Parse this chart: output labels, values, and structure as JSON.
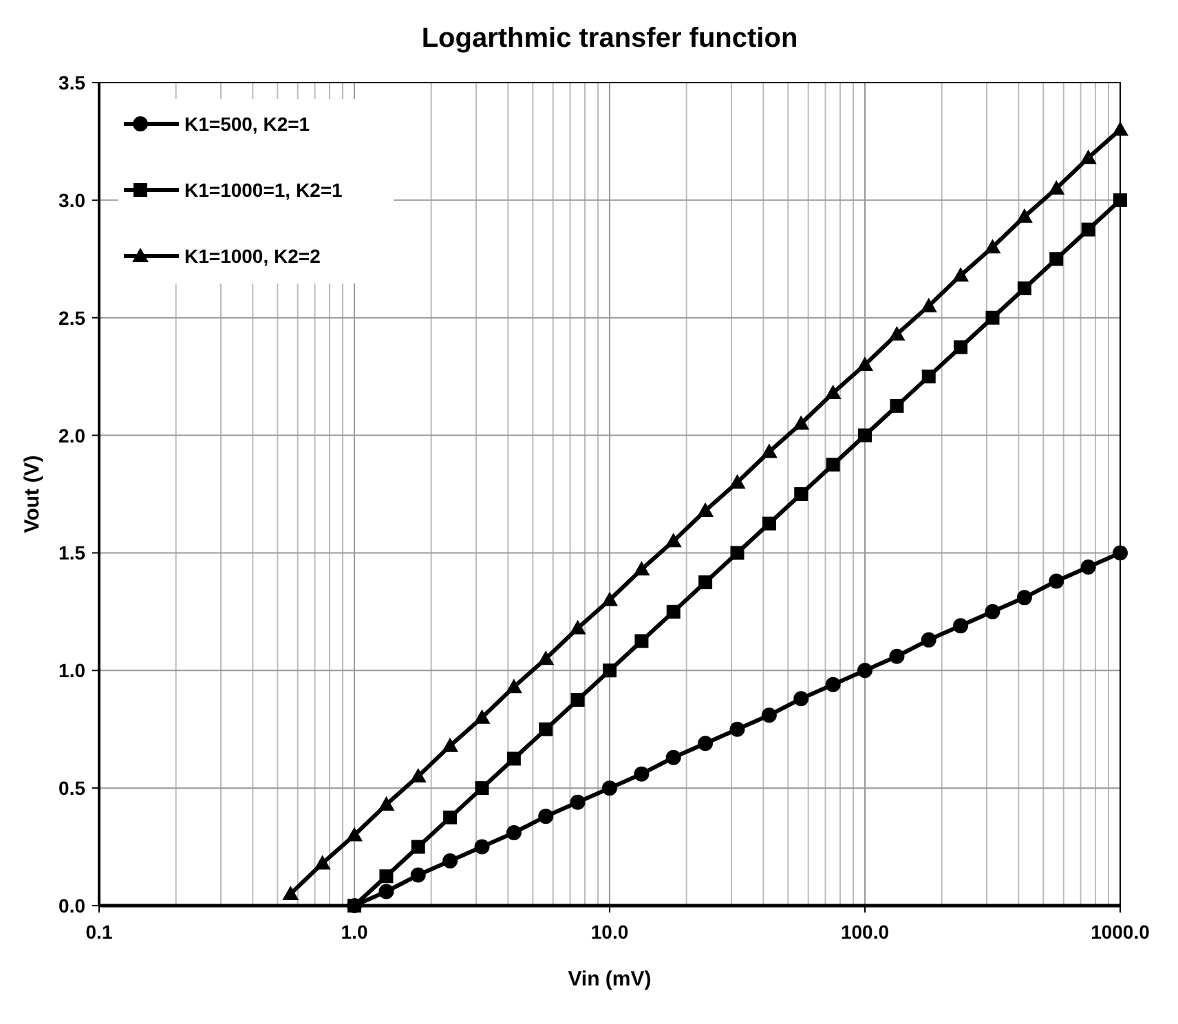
{
  "chart_data": {
    "type": "line",
    "title": "Logarthmic transfer function",
    "xlabel": "Vin (mV)",
    "ylabel": "Vout (V)",
    "log": "x",
    "grid": true,
    "legend": "top left",
    "xlim": [
      0.1,
      1000
    ],
    "xticks": [
      {
        "value": 0.1,
        "label": "0.1"
      },
      {
        "value": 1,
        "label": "1.0"
      },
      {
        "value": 10,
        "label": "10.0"
      },
      {
        "value": 100,
        "label": "100.0"
      },
      {
        "value": 1000,
        "label": "1000.0"
      }
    ],
    "ylim": [
      0,
      3.5
    ],
    "yticks": [
      {
        "value": 0,
        "label": "0.0"
      },
      {
        "value": 0.5,
        "label": "0.5"
      },
      {
        "value": 1,
        "label": "1.0"
      },
      {
        "value": 1.5,
        "label": "1.5"
      },
      {
        "value": 2,
        "label": "2.0"
      },
      {
        "value": 2.5,
        "label": "2.5"
      },
      {
        "value": 3,
        "label": "3.0"
      },
      {
        "value": 3.5,
        "label": "3.5"
      }
    ],
    "series": [
      {
        "name": "K1=500, K2=1",
        "color": "#000000",
        "marker": "circle",
        "x": [
          1,
          1.334,
          1.778,
          2.371,
          3.162,
          4.217,
          5.623,
          7.499,
          10,
          13.34,
          17.78,
          23.71,
          31.62,
          42.17,
          56.23,
          74.99,
          100,
          133.4,
          177.8,
          237.1,
          316.2,
          421.7,
          562.3,
          749.9,
          1000
        ],
        "values": [
          0,
          0.06,
          0.13,
          0.19,
          0.25,
          0.31,
          0.38,
          0.44,
          0.5,
          0.56,
          0.63,
          0.69,
          0.75,
          0.81,
          0.88,
          0.94,
          1,
          1.06,
          1.13,
          1.19,
          1.25,
          1.31,
          1.38,
          1.44,
          1.5
        ]
      },
      {
        "name": "K1=1000=1, K2=1",
        "color": "#000000",
        "marker": "square",
        "x": [
          1,
          1.334,
          1.778,
          2.371,
          3.162,
          4.217,
          5.623,
          7.499,
          10,
          13.34,
          17.78,
          23.71,
          31.62,
          42.17,
          56.23,
          74.99,
          100,
          133.4,
          177.8,
          237.1,
          316.2,
          421.7,
          562.3,
          749.9,
          1000
        ],
        "values": [
          0,
          0.125,
          0.25,
          0.375,
          0.5,
          0.625,
          0.75,
          0.875,
          1,
          1.125,
          1.25,
          1.375,
          1.5,
          1.625,
          1.75,
          1.875,
          2,
          2.125,
          2.25,
          2.375,
          2.5,
          2.625,
          2.75,
          2.875,
          3
        ]
      },
      {
        "name": "K1=1000, K2=2",
        "color": "#000000",
        "marker": "triangle",
        "x": [
          0.5623,
          0.7499,
          1,
          1.334,
          1.778,
          2.371,
          3.162,
          4.217,
          5.623,
          7.499,
          10,
          13.34,
          17.78,
          23.71,
          31.62,
          42.17,
          56.23,
          74.99,
          100,
          133.4,
          177.8,
          237.1,
          316.2,
          421.7,
          562.3,
          749.9,
          1000
        ],
        "values": [
          0.05,
          0.18,
          0.3,
          0.43,
          0.55,
          0.68,
          0.8,
          0.93,
          1.05,
          1.18,
          1.3,
          1.43,
          1.55,
          1.68,
          1.8,
          1.93,
          2.05,
          2.18,
          2.3,
          2.43,
          2.55,
          2.68,
          2.8,
          2.93,
          3.05,
          3.18,
          3.3
        ]
      }
    ]
  }
}
